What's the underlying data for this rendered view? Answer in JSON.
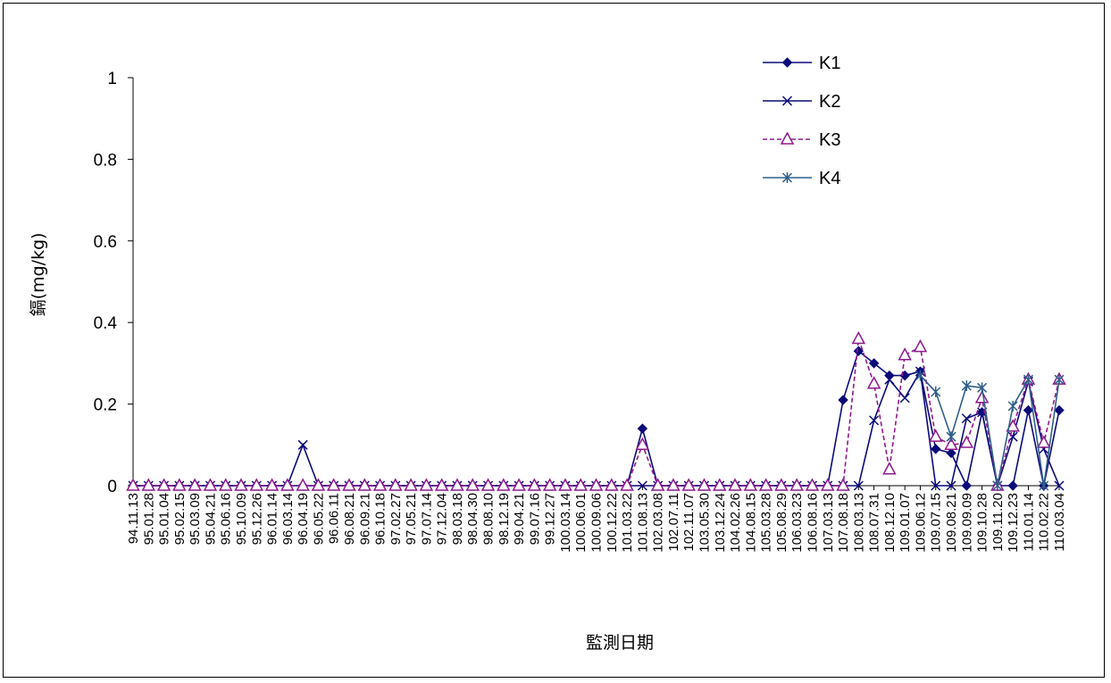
{
  "chart_data": {
    "type": "line",
    "title": "",
    "xlabel": "監測日期",
    "ylabel": "鎘(mg/kg)",
    "ylim": [
      0,
      1
    ],
    "yticks": [
      "0",
      "0.2",
      "0.4",
      "0.6",
      "0.8",
      "1"
    ],
    "grid": false,
    "legend_position": "top-right",
    "x": [
      "94.11.13",
      "95.01.28",
      "95.01.04",
      "95.02.15",
      "95.03.09",
      "95.04.21",
      "95.06.16",
      "95.10.09",
      "95.12.26",
      "96.01.14",
      "96.03.14",
      "96.04.19",
      "96.05.22",
      "96.06.11",
      "96.08.21",
      "96.09.21",
      "96.10.18",
      "97.02.27",
      "97.05.21",
      "97.07.14",
      "97.12.04",
      "98.03.18",
      "98.04.30",
      "98.08.10",
      "98.12.19",
      "99.04.21",
      "99.07.16",
      "99.12.27",
      "100.03.14",
      "100.06.01",
      "100.09.06",
      "100.12.22",
      "101.03.22",
      "101.08.13",
      "102.03.08",
      "102.07.11",
      "102.11.07",
      "103.05.30",
      "103.12.24",
      "104.02.26",
      "104.08.15",
      "105.03.28",
      "105.08.29",
      "106.03.23",
      "106.08.16",
      "107.03.13",
      "107.08.18",
      "108.03.13",
      "108.07.31",
      "108.12.10",
      "109.01.07",
      "109.06.12",
      "109.07.15",
      "109.08.21",
      "109.09.09",
      "109.10.28",
      "109.11.20",
      "109.12.23",
      "110.01.14",
      "110.02.22",
      "110.03.04"
    ],
    "series": [
      {
        "name": "K1",
        "color": "#0a0a7a",
        "marker": "diamond",
        "dash": false,
        "values": [
          0,
          0,
          0,
          0,
          0,
          0,
          0,
          0,
          0,
          0,
          0,
          0,
          0,
          0,
          0,
          0,
          0,
          0,
          0,
          0,
          0,
          0,
          0,
          0,
          0,
          0,
          0,
          0,
          0,
          0,
          0,
          0,
          0,
          0.14,
          0,
          0,
          0,
          0,
          0,
          0,
          0,
          0,
          0,
          0,
          0,
          0,
          0.21,
          0.33,
          0.3,
          0.27,
          0.27,
          0.28,
          0.09,
          0.08,
          0,
          0.18,
          0,
          0,
          0.185,
          0,
          0.185
        ]
      },
      {
        "name": "K2",
        "color": "#0a0a7a",
        "marker": "x",
        "dash": false,
        "values": [
          0,
          0,
          0,
          0,
          0,
          0,
          0,
          0,
          0,
          0,
          0,
          0.1,
          0,
          0,
          0,
          0,
          0,
          0,
          0,
          0,
          0,
          0,
          0,
          0,
          0,
          0,
          0,
          0,
          0,
          0,
          0,
          0,
          0,
          0,
          0,
          0,
          0,
          0,
          0,
          0,
          0,
          0,
          0,
          0,
          0,
          0,
          0,
          0,
          0.16,
          0.26,
          0.215,
          0.28,
          0,
          0,
          0.165,
          0.18,
          0,
          0.12,
          0.255,
          0.09,
          0
        ]
      },
      {
        "name": "K3",
        "color": "#8e1a8e",
        "marker": "triangle",
        "dash": true,
        "values": [
          0,
          0,
          0,
          0,
          0,
          0,
          0,
          0,
          0,
          0,
          0,
          0,
          0,
          0,
          0,
          0,
          0,
          0,
          0,
          0,
          0,
          0,
          0,
          0,
          0,
          0,
          0,
          0,
          0,
          0,
          0,
          0,
          0,
          0.1,
          0,
          0,
          0,
          0,
          0,
          0,
          0,
          0,
          0,
          0,
          0,
          0,
          0,
          0.36,
          0.25,
          0.04,
          0.32,
          0.34,
          0.12,
          0.1,
          0.105,
          0.215,
          0,
          0.145,
          0.26,
          0.105,
          0.26
        ]
      },
      {
        "name": "K4",
        "color": "#2f5f8a",
        "marker": "star",
        "dash": false,
        "values": [
          null,
          null,
          null,
          null,
          null,
          null,
          null,
          null,
          null,
          null,
          null,
          null,
          null,
          null,
          null,
          null,
          null,
          null,
          null,
          null,
          null,
          null,
          null,
          null,
          null,
          null,
          null,
          null,
          null,
          null,
          null,
          null,
          null,
          null,
          null,
          null,
          null,
          null,
          null,
          null,
          null,
          null,
          null,
          null,
          null,
          null,
          null,
          null,
          null,
          null,
          null,
          0.27,
          0.23,
          0.12,
          0.245,
          0.24,
          0,
          0.195,
          0.26,
          0,
          0.26
        ]
      }
    ]
  }
}
